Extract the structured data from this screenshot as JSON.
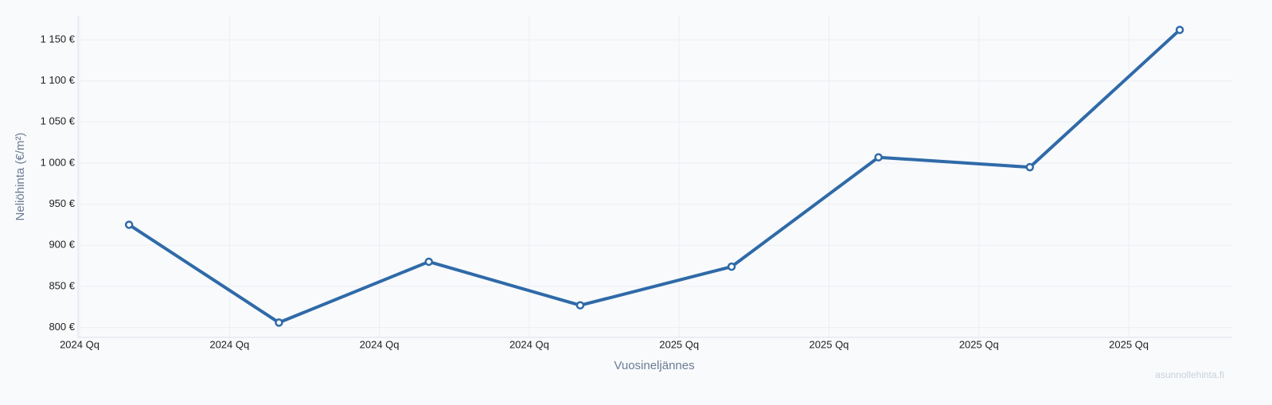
{
  "chart_data": {
    "type": "line",
    "x_label": "Vuosineljännes",
    "y_label": "Neliöhinta (€/m²)",
    "watermark": "asunnollehinta.fi",
    "x": [
      0.33,
      1.33,
      2.33,
      3.34,
      4.35,
      5.33,
      6.34,
      7.34
    ],
    "series": [
      {
        "color": "#2f6aa8",
        "values": [
          925,
          806,
          880,
          827,
          874,
          1007,
          995,
          1162
        ]
      }
    ],
    "xlim": [
      0,
      7.69
    ],
    "xticks": [
      {
        "value": 0,
        "label": "2024 Qq"
      },
      {
        "value": 1,
        "label": "2024 Qq"
      },
      {
        "value": 2,
        "label": "2024 Qq"
      },
      {
        "value": 3,
        "label": "2024 Qq"
      },
      {
        "value": 4,
        "label": "2025 Qq"
      },
      {
        "value": 5,
        "label": "2025 Qq"
      },
      {
        "value": 6,
        "label": "2025 Qq"
      },
      {
        "value": 7,
        "label": "2025 Qq"
      }
    ],
    "ylim": [
      788,
      1179
    ],
    "yticks": [
      {
        "value": 800,
        "label": "800 €"
      },
      {
        "value": 850,
        "label": "850 €"
      },
      {
        "value": 900,
        "label": "900 €"
      },
      {
        "value": 950,
        "label": "950 €"
      },
      {
        "value": 1000,
        "label": "1 000 €"
      },
      {
        "value": 1050,
        "label": "1 050 €"
      },
      {
        "value": 1100,
        "label": "1 100 €"
      },
      {
        "value": 1150,
        "label": "1 150 €"
      }
    ],
    "grid": true
  }
}
